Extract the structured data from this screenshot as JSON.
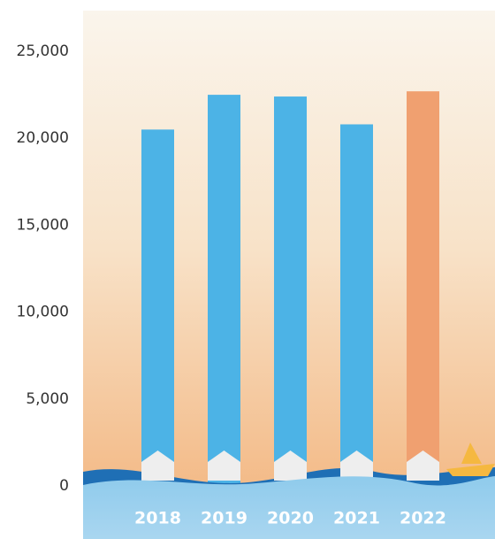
{
  "chart_data": {
    "type": "bar",
    "categories": [
      "2018",
      "2019",
      "2020",
      "2021",
      "2022"
    ],
    "values": [
      20500,
      22500,
      22400,
      20800,
      22700
    ],
    "colors": [
      "#4cb3e6",
      "#4cb3e6",
      "#4cb3e6",
      "#4cb3e6",
      "#f0a070"
    ],
    "ylim": [
      0,
      25000
    ],
    "yticks": [
      0,
      {
        "value": 5000,
        "label": "5,000"
      },
      {
        "value": 10000,
        "label": "10,000"
      },
      {
        "value": 15000,
        "label": "15,000"
      },
      {
        "value": 20000,
        "label": "20,000"
      },
      {
        "value": 25000,
        "label": "25,000"
      }
    ],
    "grid": false
  }
}
